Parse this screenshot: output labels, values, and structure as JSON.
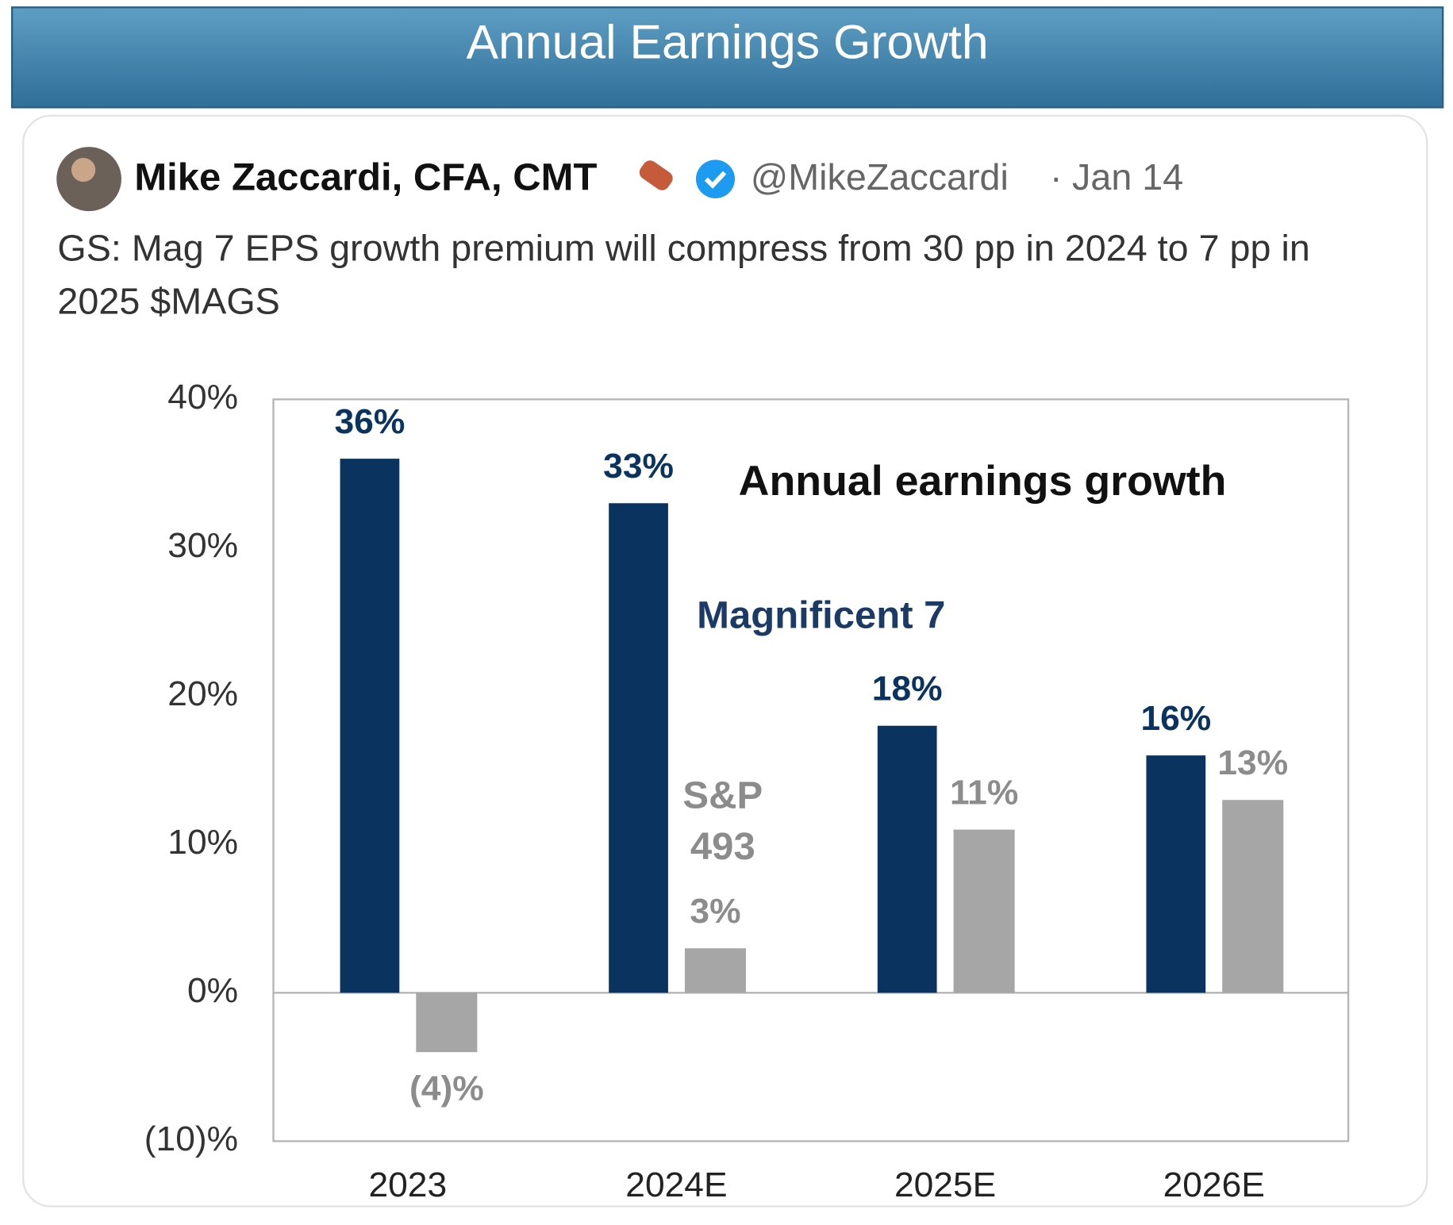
{
  "header": {
    "title": "Annual Earnings Growth"
  },
  "tweet": {
    "author": "Mike Zaccardi, CFA, CMT",
    "handle": "@MikeZaccardi",
    "date": "Jan 14",
    "text": "GS: Mag 7 EPS growth premium will compress from 30 pp in 2024 to 7 pp in 2025 $MAGS"
  },
  "chart_data": {
    "type": "bar",
    "title": "Annual earnings growth",
    "categories": [
      "2023",
      "2024E",
      "2025E",
      "2026E"
    ],
    "series": [
      {
        "name": "Magnificent 7",
        "color": "#0b3360",
        "values": [
          36,
          33,
          18,
          16
        ],
        "value_labels": [
          "36%",
          "33%",
          "18%",
          "16%"
        ]
      },
      {
        "name": "S&P 493",
        "color": "#a6a6a6",
        "values": [
          -4,
          3,
          11,
          13
        ],
        "value_labels": [
          "(4)%",
          "3%",
          "11%",
          "13%"
        ]
      }
    ],
    "ylim": [
      -10,
      40
    ],
    "yticks": [
      {
        "value": -10,
        "label": "(10)%"
      },
      {
        "value": 0,
        "label": "0%"
      },
      {
        "value": 10,
        "label": "10%"
      },
      {
        "value": 20,
        "label": "20%"
      },
      {
        "value": 30,
        "label": "30%"
      },
      {
        "value": 40,
        "label": "40%"
      }
    ],
    "grid": false
  }
}
